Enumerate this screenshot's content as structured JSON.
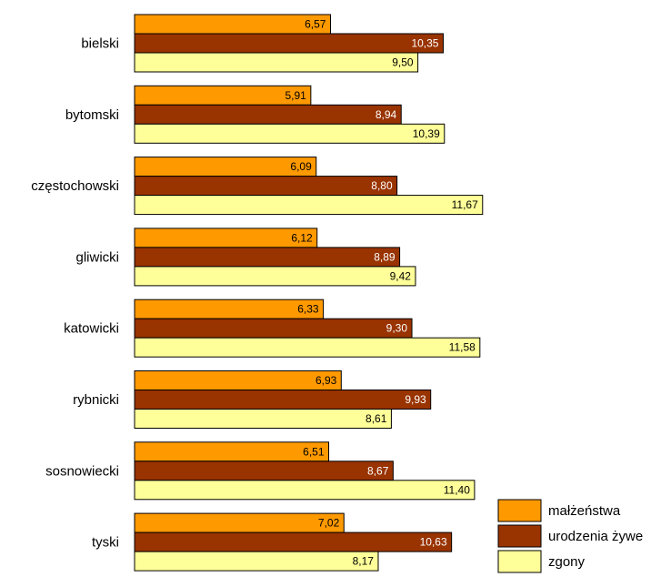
{
  "colors": {
    "marriages": "#FF9900",
    "births": "#993300",
    "deaths": "#FFFF99",
    "bar_stroke": "#000000"
  },
  "chart_data": {
    "type": "bar",
    "orientation": "horizontal",
    "categories": [
      "bielski",
      "bytomski",
      "częstochowski",
      "gliwicki",
      "katowicki",
      "rybnicki",
      "sosnowiecki",
      "tyski"
    ],
    "series": [
      {
        "name": "małżeństwa",
        "values": [
          6.57,
          5.91,
          6.09,
          6.12,
          6.33,
          6.93,
          6.51,
          7.02
        ]
      },
      {
        "name": "urodzenia żywe",
        "values": [
          10.35,
          8.94,
          8.8,
          8.89,
          9.3,
          9.93,
          8.67,
          10.63
        ]
      },
      {
        "name": "zgony",
        "values": [
          9.5,
          10.39,
          11.67,
          9.42,
          11.58,
          8.61,
          11.4,
          8.17
        ]
      }
    ],
    "value_labels": [
      [
        "6,57",
        "10,35",
        "9,50"
      ],
      [
        "5,91",
        "8,94",
        "10,39"
      ],
      [
        "6,09",
        "8,80",
        "11,67"
      ],
      [
        "6,12",
        "8,89",
        "9,42"
      ],
      [
        "6,33",
        "9,30",
        "11,58"
      ],
      [
        "6,93",
        "9,93",
        "8,61"
      ],
      [
        "6,51",
        "8,67",
        "11,40"
      ],
      [
        "7,02",
        "10,63",
        "8,17"
      ]
    ],
    "xlim": [
      0,
      12
    ],
    "grid": false,
    "legend_position": "bottom-right",
    "title": "",
    "xlabel": "",
    "ylabel": ""
  }
}
